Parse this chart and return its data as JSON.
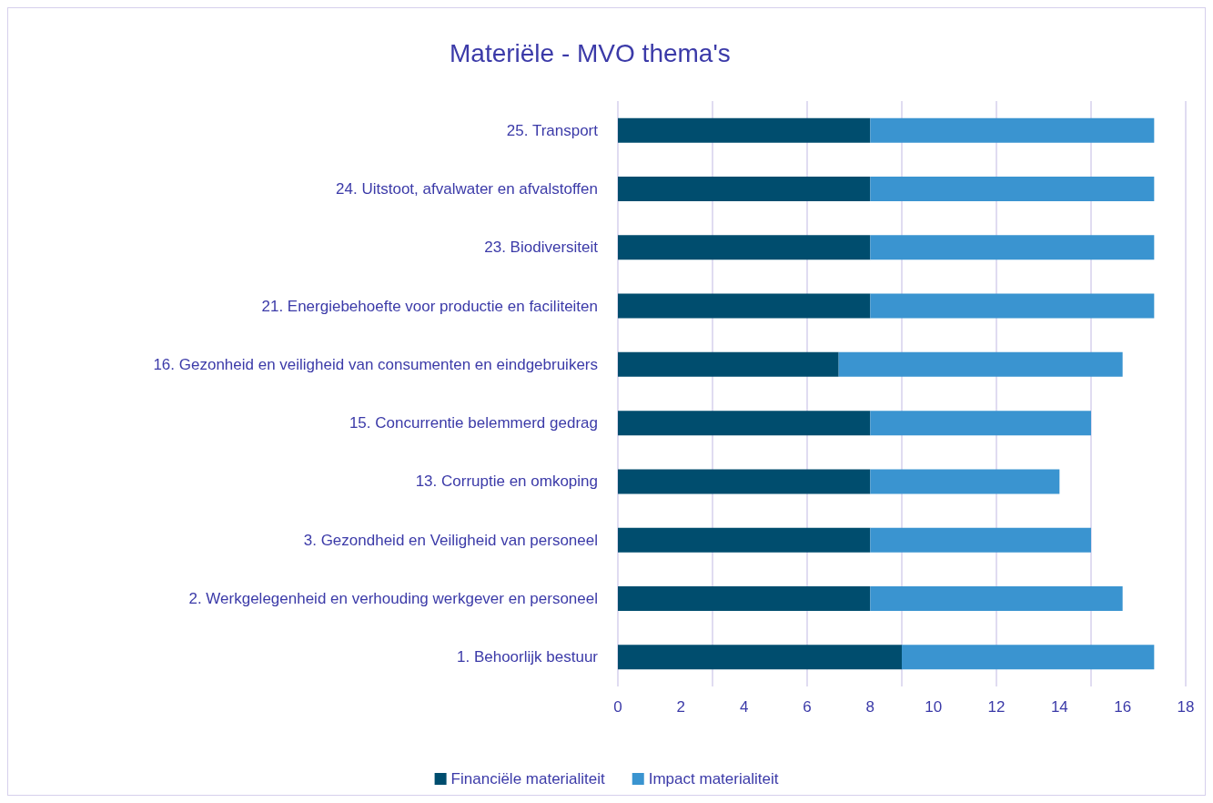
{
  "chart_data": {
    "type": "bar",
    "orientation": "horizontal",
    "stacked": true,
    "title": "Materiële - MVO thema's",
    "categories": [
      "25. Transport",
      "24. Uitstoot, afvalwater en afvalstoffen",
      "23. Biodiversiteit",
      "21. Energiebehoefte voor productie en faciliteiten",
      "16. Gezonheid en veiligheid van consumenten en eindgebruikers",
      "15. Concurrentie belemmerd gedrag",
      "13. Corruptie en omkoping",
      "3. Gezondheid en Veiligheid van personeel",
      "2. Werkgelegenheid en verhouding werkgever en personeel",
      "1. Behoorlijk bestuur"
    ],
    "series": [
      {
        "name": "Financiële materialiteit",
        "color": "#004d6e",
        "values": [
          8,
          8,
          8,
          8,
          7,
          8,
          8,
          8,
          8,
          9
        ]
      },
      {
        "name": "Impact materialiteit",
        "color": "#3a94d0",
        "values": [
          9,
          9,
          9,
          9,
          9,
          7,
          6,
          7,
          8,
          8
        ]
      }
    ],
    "xlim": [
      0,
      18
    ],
    "xticks": [
      0,
      2,
      4,
      6,
      8,
      10,
      12,
      14,
      16,
      18
    ],
    "grid": "x",
    "legend": "bottom"
  }
}
